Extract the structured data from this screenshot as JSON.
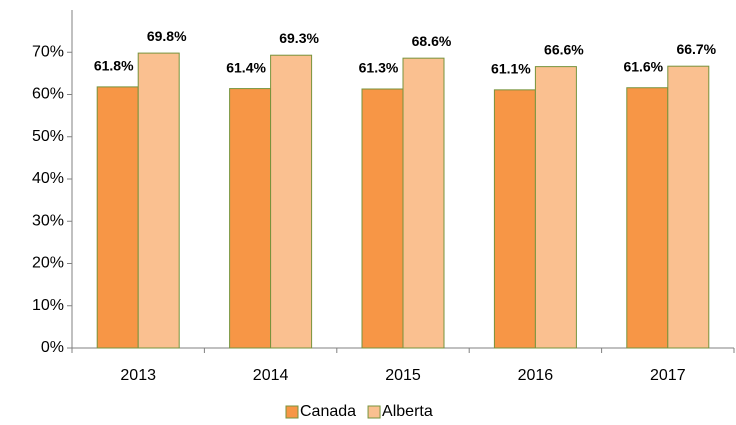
{
  "chart_data": {
    "type": "bar",
    "categories": [
      "2013",
      "2014",
      "2015",
      "2016",
      "2017"
    ],
    "series": [
      {
        "name": "Canada",
        "color": "#f79646",
        "values": [
          61.8,
          61.4,
          61.3,
          61.1,
          61.6
        ],
        "value_labels": [
          "61.8%",
          "61.4%",
          "61.3%",
          "61.1%",
          "61.6%"
        ]
      },
      {
        "name": "Alberta",
        "color": "#fac090",
        "values": [
          69.8,
          69.3,
          68.6,
          66.6,
          66.7
        ],
        "value_labels": [
          "69.8%",
          "69.3%",
          "68.6%",
          "66.6%",
          "66.7%"
        ]
      }
    ],
    "ylim": [
      0,
      80
    ],
    "yticks": [
      {
        "value": 0,
        "label": "0%"
      },
      {
        "value": 10,
        "label": "10%"
      },
      {
        "value": 20,
        "label": "20%"
      },
      {
        "value": 30,
        "label": "30%"
      },
      {
        "value": 40,
        "label": "40%"
      },
      {
        "value": 50,
        "label": "50%"
      },
      {
        "value": 60,
        "label": "60%"
      },
      {
        "value": 70,
        "label": "70%"
      }
    ],
    "grid": false,
    "legend": "bottom"
  }
}
